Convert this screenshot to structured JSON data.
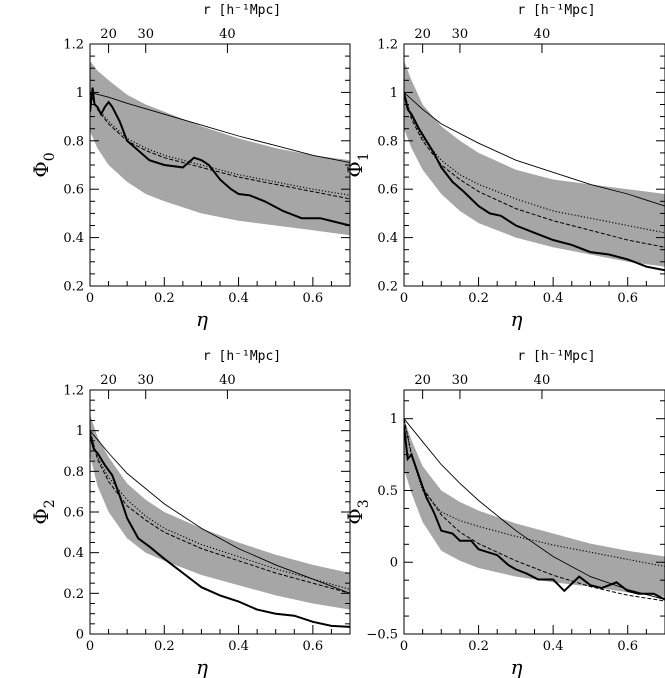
{
  "figure": {
    "band_color": "#a6a6a6",
    "line_color": "#000000"
  },
  "chart_data": [
    {
      "id": "phi0",
      "type": "line",
      "ylabel": "Φ",
      "ylabel_sub": "0",
      "xlabel": "η",
      "top_axis_label": "r [h⁻¹Mpc]",
      "xlim": [
        0,
        0.7
      ],
      "ylim": [
        0.2,
        1.2
      ],
      "xticks": [
        0,
        0.2,
        0.4,
        0.6
      ],
      "xtick_labels": [
        "0",
        "0.2",
        "0.4",
        "0.6"
      ],
      "yticks": [
        0.2,
        0.4,
        0.6,
        0.8,
        1.0,
        1.2
      ],
      "ytick_labels": [
        "0.2",
        "0.4",
        "0.6",
        "0.8",
        "1",
        "1.2"
      ],
      "top_ticks": [
        {
          "eta": 0.05,
          "label": "20"
        },
        {
          "eta": 0.15,
          "label": "30"
        },
        {
          "eta": 0.37,
          "label": "40"
        }
      ],
      "band": {
        "x": [
          0,
          0.02,
          0.05,
          0.1,
          0.15,
          0.2,
          0.3,
          0.4,
          0.5,
          0.6,
          0.7
        ],
        "upper": [
          1.13,
          1.09,
          1.05,
          0.99,
          0.95,
          0.92,
          0.86,
          0.81,
          0.77,
          0.74,
          0.72
        ],
        "lower": [
          0.84,
          0.77,
          0.7,
          0.63,
          0.58,
          0.55,
          0.5,
          0.47,
          0.45,
          0.43,
          0.41
        ]
      },
      "series": [
        {
          "style": "thin",
          "x": [
            0,
            0.05,
            0.1,
            0.2,
            0.3,
            0.4,
            0.5,
            0.6,
            0.7
          ],
          "y": [
            1.0,
            0.98,
            0.955,
            0.91,
            0.865,
            0.82,
            0.78,
            0.74,
            0.71
          ]
        },
        {
          "style": "dashed",
          "x": [
            0,
            0.02,
            0.05,
            0.1,
            0.15,
            0.2,
            0.3,
            0.4,
            0.5,
            0.6,
            0.7
          ],
          "y": [
            1.0,
            0.93,
            0.87,
            0.8,
            0.76,
            0.73,
            0.69,
            0.65,
            0.62,
            0.59,
            0.56
          ]
        },
        {
          "style": "dotted",
          "x": [
            0,
            0.02,
            0.05,
            0.1,
            0.15,
            0.2,
            0.3,
            0.4,
            0.5,
            0.6,
            0.7
          ],
          "y": [
            1.0,
            0.935,
            0.88,
            0.81,
            0.77,
            0.74,
            0.7,
            0.66,
            0.63,
            0.6,
            0.575
          ]
        },
        {
          "style": "thick",
          "x": [
            0,
            0.007,
            0.012,
            0.02,
            0.03,
            0.04,
            0.05,
            0.06,
            0.08,
            0.1,
            0.13,
            0.16,
            0.2,
            0.25,
            0.28,
            0.3,
            0.32,
            0.35,
            0.38,
            0.4,
            0.43,
            0.47,
            0.52,
            0.57,
            0.62,
            0.66,
            0.7
          ],
          "y": [
            0.92,
            1.02,
            0.95,
            0.94,
            0.91,
            0.94,
            0.96,
            0.94,
            0.88,
            0.8,
            0.76,
            0.72,
            0.7,
            0.69,
            0.73,
            0.72,
            0.7,
            0.64,
            0.6,
            0.58,
            0.575,
            0.55,
            0.51,
            0.48,
            0.48,
            0.465,
            0.45
          ]
        }
      ]
    },
    {
      "id": "phi1",
      "type": "line",
      "ylabel": "Φ",
      "ylabel_sub": "1",
      "xlabel": "η",
      "top_axis_label": "r [h⁻¹Mpc]",
      "xlim": [
        0,
        0.7
      ],
      "ylim": [
        0.2,
        1.2
      ],
      "xticks": [
        0,
        0.2,
        0.4,
        0.6
      ],
      "xtick_labels": [
        "0",
        "0.2",
        "0.4",
        "0.6"
      ],
      "yticks": [
        0.2,
        0.4,
        0.6,
        0.8,
        1.0,
        1.2
      ],
      "ytick_labels": [
        "0.2",
        "0.4",
        "0.6",
        "0.8",
        "1",
        "1.2"
      ],
      "top_ticks": [
        {
          "eta": 0.05,
          "label": "20"
        },
        {
          "eta": 0.15,
          "label": "30"
        },
        {
          "eta": 0.37,
          "label": "40"
        }
      ],
      "band": {
        "x": [
          0,
          0.02,
          0.05,
          0.1,
          0.15,
          0.2,
          0.3,
          0.4,
          0.5,
          0.6,
          0.7
        ],
        "upper": [
          1.13,
          1.05,
          0.95,
          0.86,
          0.8,
          0.75,
          0.68,
          0.64,
          0.62,
          0.6,
          0.58
        ],
        "lower": [
          0.85,
          0.77,
          0.68,
          0.58,
          0.51,
          0.46,
          0.4,
          0.36,
          0.33,
          0.3,
          0.28
        ]
      },
      "series": [
        {
          "style": "thin",
          "x": [
            0,
            0.05,
            0.1,
            0.2,
            0.3,
            0.4,
            0.5,
            0.6,
            0.7
          ],
          "y": [
            1.0,
            0.93,
            0.87,
            0.79,
            0.72,
            0.67,
            0.62,
            0.58,
            0.53
          ]
        },
        {
          "style": "dashed",
          "x": [
            0,
            0.02,
            0.05,
            0.1,
            0.15,
            0.2,
            0.3,
            0.4,
            0.5,
            0.6,
            0.7
          ],
          "y": [
            1.0,
            0.89,
            0.8,
            0.7,
            0.64,
            0.59,
            0.52,
            0.47,
            0.43,
            0.39,
            0.36
          ]
        },
        {
          "style": "dotted",
          "x": [
            0,
            0.02,
            0.05,
            0.1,
            0.15,
            0.2,
            0.3,
            0.4,
            0.5,
            0.6,
            0.7
          ],
          "y": [
            1.0,
            0.9,
            0.81,
            0.72,
            0.66,
            0.62,
            0.56,
            0.51,
            0.48,
            0.45,
            0.42
          ]
        },
        {
          "style": "thick",
          "x": [
            0,
            0.01,
            0.02,
            0.04,
            0.06,
            0.08,
            0.1,
            0.13,
            0.16,
            0.2,
            0.23,
            0.26,
            0.3,
            0.35,
            0.4,
            0.45,
            0.5,
            0.55,
            0.6,
            0.65,
            0.7
          ],
          "y": [
            1.0,
            0.93,
            0.91,
            0.85,
            0.8,
            0.75,
            0.69,
            0.63,
            0.59,
            0.53,
            0.5,
            0.49,
            0.45,
            0.42,
            0.39,
            0.37,
            0.34,
            0.33,
            0.31,
            0.28,
            0.265
          ]
        }
      ]
    },
    {
      "id": "phi2",
      "type": "line",
      "ylabel": "Φ",
      "ylabel_sub": "2",
      "xlabel": "η",
      "top_axis_label": "r [h⁻¹Mpc]",
      "xlim": [
        0,
        0.7
      ],
      "ylim": [
        0,
        1.2
      ],
      "xticks": [
        0,
        0.2,
        0.4,
        0.6
      ],
      "xtick_labels": [
        "0",
        "0.2",
        "0.4",
        "0.6"
      ],
      "yticks": [
        0,
        0.2,
        0.4,
        0.6,
        0.8,
        1.0,
        1.2
      ],
      "ytick_labels": [
        "0",
        "0.2",
        "0.4",
        "0.6",
        "0.8",
        "1",
        "1.2"
      ],
      "top_ticks": [
        {
          "eta": 0.05,
          "label": "20"
        },
        {
          "eta": 0.15,
          "label": "30"
        },
        {
          "eta": 0.37,
          "label": "40"
        }
      ],
      "band": {
        "x": [
          0,
          0.02,
          0.05,
          0.1,
          0.15,
          0.2,
          0.3,
          0.4,
          0.5,
          0.6,
          0.7
        ],
        "upper": [
          1.08,
          0.97,
          0.87,
          0.74,
          0.66,
          0.6,
          0.52,
          0.45,
          0.39,
          0.34,
          0.3
        ],
        "lower": [
          0.88,
          0.73,
          0.6,
          0.47,
          0.4,
          0.36,
          0.29,
          0.24,
          0.19,
          0.15,
          0.12
        ]
      },
      "series": [
        {
          "style": "thin",
          "x": [
            0,
            0.05,
            0.1,
            0.2,
            0.3,
            0.4,
            0.5,
            0.6,
            0.7
          ],
          "y": [
            1.0,
            0.89,
            0.79,
            0.64,
            0.52,
            0.42,
            0.34,
            0.27,
            0.2
          ]
        },
        {
          "style": "dashed",
          "x": [
            0,
            0.02,
            0.05,
            0.1,
            0.15,
            0.2,
            0.3,
            0.4,
            0.5,
            0.6,
            0.7
          ],
          "y": [
            1.0,
            0.86,
            0.75,
            0.63,
            0.56,
            0.5,
            0.42,
            0.36,
            0.3,
            0.25,
            0.2
          ]
        },
        {
          "style": "dotted",
          "x": [
            0,
            0.02,
            0.05,
            0.1,
            0.15,
            0.2,
            0.3,
            0.4,
            0.5,
            0.6,
            0.7
          ],
          "y": [
            1.0,
            0.87,
            0.77,
            0.66,
            0.58,
            0.52,
            0.44,
            0.38,
            0.32,
            0.27,
            0.22
          ]
        },
        {
          "style": "thick",
          "x": [
            0,
            0.01,
            0.02,
            0.04,
            0.06,
            0.08,
            0.1,
            0.13,
            0.16,
            0.2,
            0.25,
            0.3,
            0.35,
            0.4,
            0.45,
            0.5,
            0.55,
            0.6,
            0.65,
            0.7
          ],
          "y": [
            0.98,
            0.91,
            0.89,
            0.83,
            0.78,
            0.68,
            0.57,
            0.47,
            0.43,
            0.37,
            0.3,
            0.23,
            0.19,
            0.16,
            0.12,
            0.1,
            0.09,
            0.06,
            0.04,
            0.035
          ]
        }
      ]
    },
    {
      "id": "phi3",
      "type": "line",
      "ylabel": "Φ",
      "ylabel_sub": "3",
      "xlabel": "η",
      "top_axis_label": "r [h⁻¹Mpc]",
      "xlim": [
        0,
        0.7
      ],
      "ylim": [
        -0.5,
        1.2
      ],
      "xticks": [
        0,
        0.2,
        0.4,
        0.6
      ],
      "xtick_labels": [
        "0",
        "0.2",
        "0.4",
        "0.6"
      ],
      "yticks": [
        -0.5,
        0,
        0.5,
        1.0
      ],
      "ytick_labels": [
        "−0.5",
        "0",
        "0.5",
        "1"
      ],
      "top_ticks": [
        {
          "eta": 0.05,
          "label": "20"
        },
        {
          "eta": 0.15,
          "label": "30"
        },
        {
          "eta": 0.37,
          "label": "40"
        }
      ],
      "band": {
        "x": [
          0,
          0.02,
          0.05,
          0.1,
          0.15,
          0.2,
          0.3,
          0.4,
          0.5,
          0.6,
          0.7
        ],
        "upper": [
          1.0,
          0.85,
          0.67,
          0.5,
          0.42,
          0.36,
          0.27,
          0.2,
          0.13,
          0.08,
          0.04
        ],
        "lower": [
          0.65,
          0.48,
          0.28,
          0.08,
          0.01,
          -0.04,
          -0.1,
          -0.14,
          -0.17,
          -0.21,
          -0.24
        ]
      },
      "series": [
        {
          "style": "thin",
          "x": [
            0,
            0.05,
            0.1,
            0.15,
            0.2,
            0.3,
            0.4,
            0.5,
            0.6,
            0.7
          ],
          "y": [
            1.0,
            0.84,
            0.68,
            0.55,
            0.43,
            0.22,
            0.04,
            -0.1,
            -0.19,
            -0.26
          ]
        },
        {
          "style": "dashed",
          "x": [
            0,
            0.02,
            0.05,
            0.1,
            0.15,
            0.2,
            0.3,
            0.4,
            0.5,
            0.6,
            0.7
          ],
          "y": [
            1.0,
            0.75,
            0.52,
            0.33,
            0.21,
            0.13,
            0.01,
            -0.09,
            -0.17,
            -0.23,
            -0.27
          ]
        },
        {
          "style": "dotted",
          "x": [
            0,
            0.02,
            0.05,
            0.1,
            0.15,
            0.2,
            0.3,
            0.4,
            0.5,
            0.6,
            0.7
          ],
          "y": [
            1.0,
            0.74,
            0.5,
            0.35,
            0.29,
            0.25,
            0.18,
            0.12,
            0.07,
            0.02,
            -0.03
          ]
        },
        {
          "style": "thick",
          "x": [
            0,
            0.01,
            0.02,
            0.04,
            0.06,
            0.08,
            0.1,
            0.13,
            0.15,
            0.18,
            0.2,
            0.25,
            0.28,
            0.3,
            0.33,
            0.36,
            0.4,
            0.43,
            0.47,
            0.5,
            0.53,
            0.57,
            0.6,
            0.63,
            0.67,
            0.7
          ],
          "y": [
            0.95,
            0.72,
            0.75,
            0.6,
            0.45,
            0.35,
            0.22,
            0.2,
            0.15,
            0.15,
            0.09,
            0.05,
            -0.02,
            -0.05,
            -0.08,
            -0.12,
            -0.12,
            -0.2,
            -0.1,
            -0.16,
            -0.18,
            -0.14,
            -0.2,
            -0.22,
            -0.22,
            -0.26
          ]
        }
      ]
    }
  ]
}
